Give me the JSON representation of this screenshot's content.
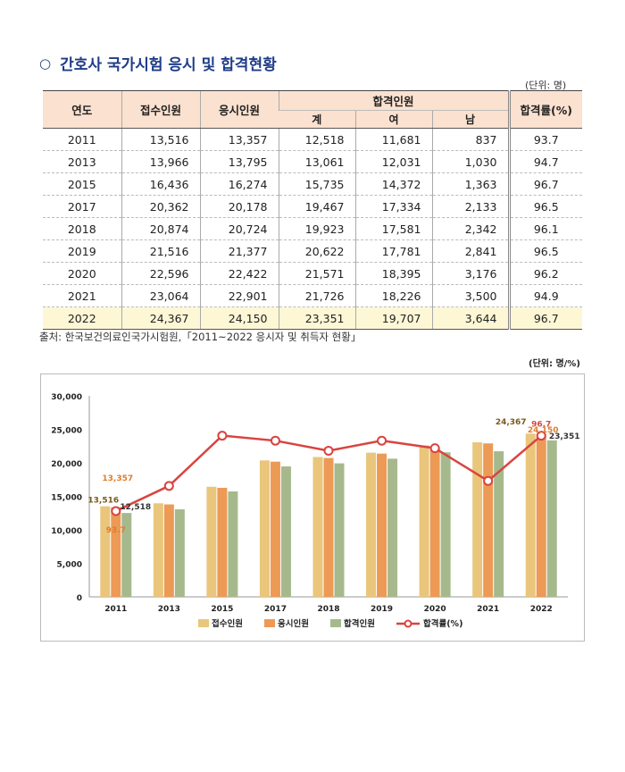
{
  "header": {
    "bullet": "○",
    "title": "간호사 국가시험 응시 및 합격현황",
    "unit": "(단위: 명)"
  },
  "table": {
    "headers": {
      "year": "연도",
      "applied": "접수인원",
      "tested": "응시인원",
      "passed": "합격인원",
      "total": "계",
      "female": "여",
      "male": "남",
      "rate": "합격률(%)"
    },
    "rows": [
      [
        "2011",
        "13,516",
        "13,357",
        "12,518",
        "11,681",
        "837",
        "93.7"
      ],
      [
        "2013",
        "13,966",
        "13,795",
        "13,061",
        "12,031",
        "1,030",
        "94.7"
      ],
      [
        "2015",
        "16,436",
        "16,274",
        "15,735",
        "14,372",
        "1,363",
        "96.7"
      ],
      [
        "2017",
        "20,362",
        "20,178",
        "19,467",
        "17,334",
        "2,133",
        "96.5"
      ],
      [
        "2018",
        "20,874",
        "20,724",
        "19,923",
        "17,581",
        "2,342",
        "96.1"
      ],
      [
        "2019",
        "21,516",
        "21,377",
        "20,622",
        "17,781",
        "2,841",
        "96.5"
      ],
      [
        "2020",
        "22,596",
        "22,422",
        "21,571",
        "18,395",
        "3,176",
        "96.2"
      ],
      [
        "2021",
        "23,064",
        "22,901",
        "21,726",
        "18,226",
        "3,500",
        "94.9"
      ],
      [
        "2022",
        "24,367",
        "24,150",
        "23,351",
        "19,707",
        "3,644",
        "96.7"
      ]
    ]
  },
  "source": "출처: 한국보건의료인국가시험원,「2011~2022 응시자 및 취득자 현황」",
  "chart_unit": "(단위: 명/%)",
  "chart_data": {
    "type": "bar",
    "categories": [
      "2011",
      "2013",
      "2015",
      "2017",
      "2018",
      "2019",
      "2020",
      "2021",
      "2022"
    ],
    "series": [
      {
        "name": "접수인원",
        "color": "#e9c67b",
        "values": [
          13516,
          13966,
          16436,
          20362,
          20874,
          21516,
          22596,
          23064,
          24367
        ]
      },
      {
        "name": "응시인원",
        "color": "#ec9a55",
        "values": [
          13357,
          13795,
          16274,
          20178,
          20724,
          21377,
          22422,
          22901,
          24150
        ]
      },
      {
        "name": "합격인원",
        "color": "#a6b98d",
        "values": [
          12518,
          13061,
          15735,
          19467,
          19923,
          20622,
          21571,
          21726,
          23351
        ]
      }
    ],
    "line": {
      "name": "합격률(%)",
      "color": "#d9443f",
      "values": [
        93.7,
        94.7,
        96.7,
        96.5,
        96.1,
        96.5,
        96.2,
        94.9,
        96.7
      ]
    },
    "ylim": [
      0,
      30000
    ],
    "yticks": [
      "0",
      "5,000",
      "10,000",
      "15,000",
      "20,000",
      "25,000",
      "30,000"
    ],
    "data_labels": {
      "first": {
        "applied": "13,516",
        "tested": "13,357",
        "passed": "12,518",
        "rate": "93.7"
      },
      "last": {
        "applied": "24,367",
        "tested": "24,150",
        "passed": "23,351",
        "rate": "96.7"
      }
    },
    "legend_position": "bottom"
  }
}
